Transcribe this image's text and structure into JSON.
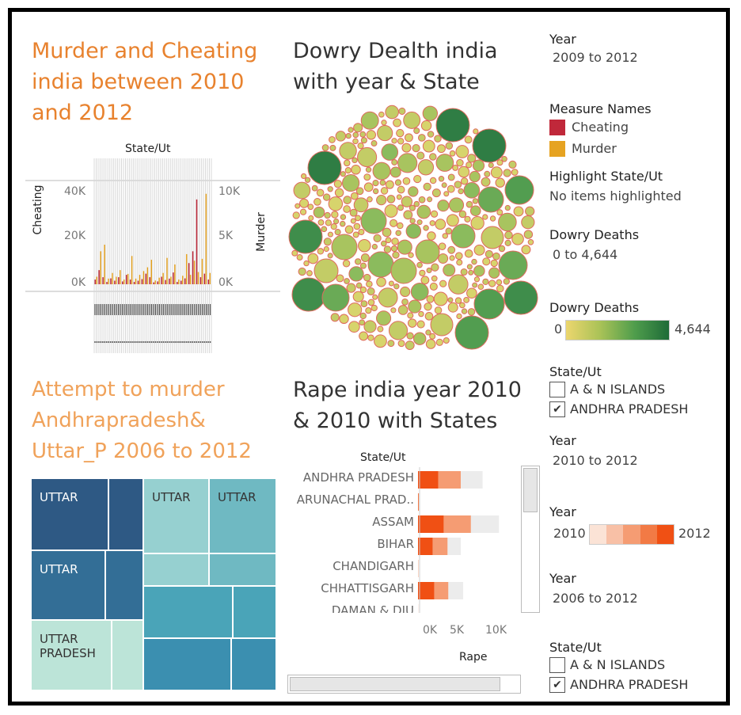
{
  "panels": {
    "murder_cheating": {
      "title_lines": [
        "Murder and Cheating",
        "india between 2010",
        "and 2012"
      ],
      "axis_top": "State/Ut",
      "left_axis_title": "Cheating",
      "right_axis_title": "Murder",
      "left_ticks": [
        "40K",
        "20K",
        "0K"
      ],
      "right_ticks": [
        "10K",
        "5K",
        "0K"
      ]
    },
    "dowry": {
      "title_lines": [
        "Dowry Dealth india",
        "with year & State"
      ]
    },
    "attempt": {
      "title_lines": [
        "Attempt to murder",
        "Andhrapradesh&",
        "Uttar_P 2006 to 2012"
      ],
      "tiles": [
        {
          "label": "UTTAR"
        },
        {
          "label": ""
        },
        {
          "label": "UTTAR"
        },
        {
          "label": "UTTAR"
        },
        {
          "label": "UTTAR"
        },
        {
          "label": ""
        },
        {
          "label": ""
        },
        {
          "label": ""
        },
        {
          "label": "UTTAR\nPRADESH"
        },
        {
          "label": ""
        },
        {
          "label": ""
        },
        {
          "label": ""
        },
        {
          "label": ""
        },
        {
          "label": ""
        }
      ]
    },
    "rape": {
      "title_lines": [
        "Rape india year 2010",
        "& 2010 with States"
      ],
      "row_header": "State/Ut",
      "x_ticks": [
        "0K",
        "5K",
        "10K"
      ],
      "x_title": "Rape"
    }
  },
  "legends": {
    "year1": {
      "title": "Year",
      "value": "2009 to 2012"
    },
    "measure_names": {
      "title": "Measure Names",
      "items": [
        {
          "label": "Cheating",
          "color": "#c0283a"
        },
        {
          "label": "Murder",
          "color": "#e6a321"
        }
      ]
    },
    "highlight": {
      "title": "Highlight State/Ut",
      "value": "No items highlighted"
    },
    "dowry_range": {
      "title": "Dowry Deaths",
      "value": "0 to 4,644"
    },
    "dowry_color": {
      "title": "Dowry Deaths",
      "min": "0",
      "max": "4,644"
    },
    "state1": {
      "title": "State/Ut",
      "items": [
        {
          "label": "A & N ISLANDS",
          "checked": false
        },
        {
          "label": "ANDHRA PRADESH",
          "checked": true
        }
      ]
    },
    "year2": {
      "title": "Year",
      "value": "2010 to 2012"
    },
    "year3": {
      "title": "Year",
      "min": "2010",
      "max": "2012"
    },
    "year4": {
      "title": "Year",
      "value": "2006 to 2012"
    },
    "state2": {
      "title": "State/Ut",
      "items": [
        {
          "label": "A & N ISLANDS",
          "checked": false
        },
        {
          "label": "ANDHRA PRADESH",
          "checked": true
        }
      ]
    }
  },
  "chart_data": [
    {
      "type": "bar",
      "title": "Murder and Cheating india between 2010 and 2012",
      "xlabel": "State/Ut",
      "ylabel": "Cheating",
      "ylabel_right": "Murder",
      "ylim": [
        0,
        40000
      ],
      "ylim_right": [
        0,
        10000
      ],
      "series": [
        {
          "name": "Cheating",
          "values": [
            2000,
            6000,
            3000,
            1000,
            2500,
            1500,
            3000,
            1200,
            4000,
            2000,
            1000,
            1500,
            2200,
            4500,
            3000,
            800,
            1200,
            3200,
            1800,
            2400,
            5000,
            1000,
            1500,
            2500,
            9000,
            14000,
            36000,
            3000,
            4500,
            2000
          ]
        },
        {
          "name": "Murder",
          "values": [
            800,
            3500,
            4200,
            600,
            1200,
            800,
            1500,
            500,
            1100,
            3000,
            600,
            1000,
            1400,
            1800,
            2600,
            400,
            700,
            1200,
            2800,
            800,
            2100,
            500,
            900,
            3200,
            1000,
            2500,
            1300,
            2700,
            9600,
            1200
          ]
        }
      ]
    },
    {
      "type": "scatter",
      "title": "Dowry Dealth india with year & State",
      "color_legend": "Dowry Deaths",
      "color_range": [
        0,
        4644
      ]
    },
    {
      "type": "bar",
      "title": "Rape india year 2010 & 2010 with States",
      "categories": [
        "ANDHRA PRADESH",
        "ARUNACHAL PRAD..",
        "ASSAM",
        "BIHAR",
        "CHANDIGARH",
        "CHHATTISGARH",
        "DAMAN & DIU"
      ],
      "series": [
        {
          "name": "2010",
          "values": [
            2600,
            50,
            3300,
            1900,
            20,
            2100,
            5
          ]
        },
        {
          "name": "2011",
          "values": [
            2900,
            60,
            3500,
            1900,
            25,
            1800,
            5
          ]
        },
        {
          "name": "2012",
          "values": [
            2800,
            50,
            3600,
            1700,
            25,
            1900,
            5
          ]
        }
      ],
      "xlabel": "Rape",
      "ylabel": "State/Ut",
      "xlim": [
        0,
        12000
      ]
    }
  ]
}
